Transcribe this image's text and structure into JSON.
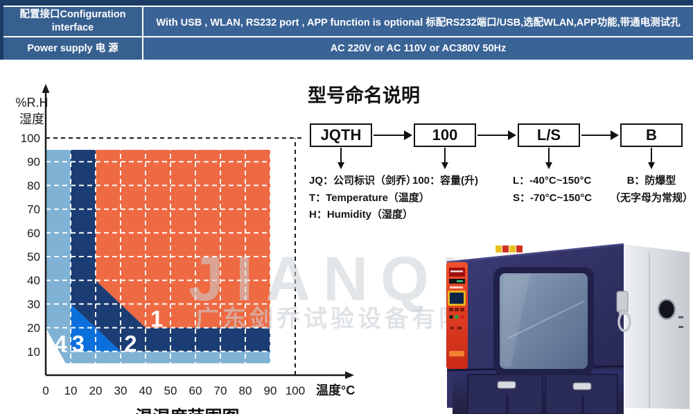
{
  "spec_table": {
    "rows": [
      {
        "label": "配置接口Configuration interface",
        "value": "With USB , WLAN, RS232  port , APP function is optional 标配RS232端口/USB,选配WLAN,APP功能,带通电测试孔"
      },
      {
        "label": "Power supply 电 源",
        "value": "AC 220V or AC 110V or AC380V 50Hz"
      }
    ]
  },
  "naming": {
    "title": "型号命名说明",
    "boxes": [
      {
        "label": "JQTH",
        "descriptions": [
          "JQ：公司标识（剑乔）",
          "T：Temperature（温度）",
          "H：Humidity（湿度）"
        ]
      },
      {
        "label": "100",
        "descriptions": [
          "100：容量(升)"
        ]
      },
      {
        "label": "L/S",
        "descriptions": [
          "L：-40°C~150°C",
          "S：-70°C~150°C"
        ]
      },
      {
        "label": "B",
        "descriptions": [
          "B：防爆型",
          "（无字母为常规）"
        ]
      }
    ]
  },
  "watermark": {
    "brand_en": "JIANQIAO",
    "brand_cn": "广东剑乔试验设备有限公司"
  },
  "chart_data": {
    "type": "area",
    "title": "温湿度范围图",
    "xlabel": "温度°C",
    "ylabel_lines": [
      "%R.H",
      "湿度"
    ],
    "xlim": [
      0,
      100
    ],
    "ylim": [
      0,
      100
    ],
    "x_ticks": [
      0,
      10,
      20,
      30,
      40,
      50,
      60,
      70,
      80,
      90,
      100
    ],
    "y_ticks": [
      10,
      20,
      30,
      40,
      50,
      60,
      70,
      80,
      90,
      100
    ],
    "grid": {
      "style": "dashed",
      "color": "#ffffff",
      "step": 10
    },
    "envelope": [
      [
        0,
        20
      ],
      [
        0,
        95
      ],
      [
        90,
        95
      ],
      [
        90,
        5
      ],
      [
        8,
        5
      ]
    ],
    "regions": [
      {
        "label": "4",
        "color": "#7fb2d5",
        "points": [
          [
            0,
            20
          ],
          [
            0,
            95
          ],
          [
            90,
            95
          ],
          [
            90,
            5
          ],
          [
            8,
            5
          ]
        ],
        "label_pos": [
          6,
          13.5
        ]
      },
      {
        "label": "2",
        "color": "#1c3d73",
        "points": [
          [
            10,
            30
          ],
          [
            10,
            95
          ],
          [
            20,
            95
          ],
          [
            20,
            40
          ],
          [
            40,
            20
          ],
          [
            90,
            20
          ],
          [
            90,
            10
          ],
          [
            30,
            10
          ]
        ],
        "label_pos": [
          34,
          13.5
        ]
      },
      {
        "label": "3",
        "color": "#0c70dc",
        "points": [
          [
            10,
            30
          ],
          [
            30,
            10
          ],
          [
            10,
            10
          ]
        ],
        "label_pos": [
          13,
          13.5
        ]
      },
      {
        "label": "1",
        "color": "#ee6a43",
        "points": [
          [
            20,
            95
          ],
          [
            90,
            95
          ],
          [
            90,
            20
          ],
          [
            40,
            20
          ],
          [
            20,
            40
          ]
        ],
        "label_pos": [
          44.5,
          24
        ]
      }
    ],
    "guides": [
      {
        "type": "hline",
        "y": 100,
        "x_range": [
          0,
          103
        ],
        "style": "dashed",
        "color": "#1a1a1a"
      },
      {
        "type": "vline",
        "x": 100,
        "y_range": [
          0,
          100
        ],
        "style": "dashed",
        "color": "#1a1a1a"
      }
    ],
    "legend": "none"
  }
}
